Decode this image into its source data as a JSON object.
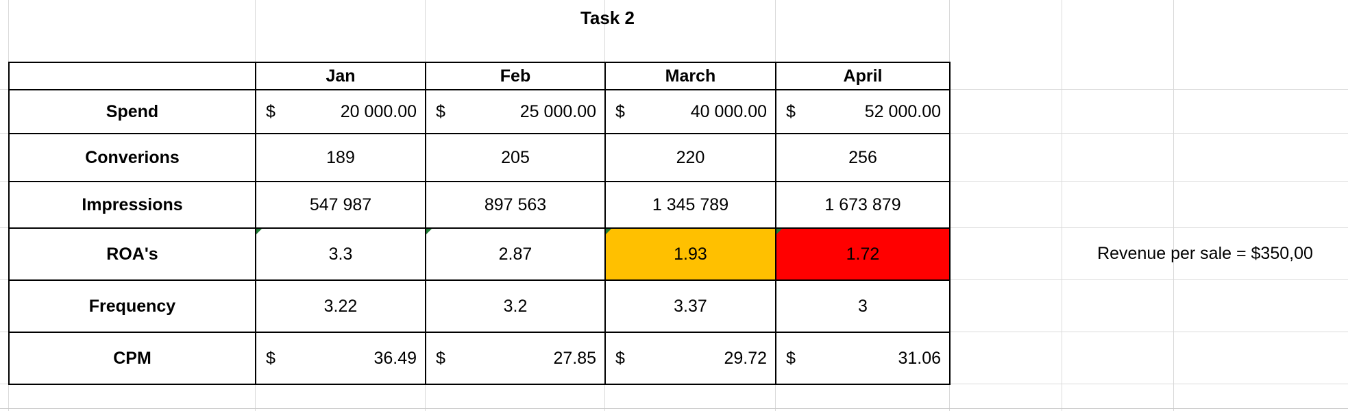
{
  "title": "Task 2",
  "columns": [
    "Jan",
    "Feb",
    "March",
    "April"
  ],
  "rows": [
    {
      "label": "Spend",
      "type": "money",
      "currency": "$",
      "cells": [
        "20 000.00",
        "25 000.00",
        "40 000.00",
        "52 000.00"
      ]
    },
    {
      "label": "Converions",
      "type": "plain",
      "cells": [
        "189",
        "205",
        "220",
        "256"
      ]
    },
    {
      "label": "Impressions",
      "type": "plain",
      "cells": [
        "547 987",
        "897 563",
        "1 345 789",
        "1 673 879"
      ]
    },
    {
      "label": "ROA's",
      "type": "plain",
      "cells": [
        "3.3",
        "2.87",
        "1.93",
        "1.72"
      ],
      "cell_colors": [
        "#ffffff",
        "#ffffff",
        "#ffc000",
        "#ff0000"
      ]
    },
    {
      "label": "Frequency",
      "type": "plain",
      "cells": [
        "3.22",
        "3.2",
        "3.37",
        "3"
      ]
    },
    {
      "label": "CPM",
      "type": "money",
      "currency": "$",
      "cells": [
        "36.49",
        "27.85",
        "29.72",
        "31.06"
      ]
    }
  ],
  "note": "Revenue per sale = $350,00"
}
